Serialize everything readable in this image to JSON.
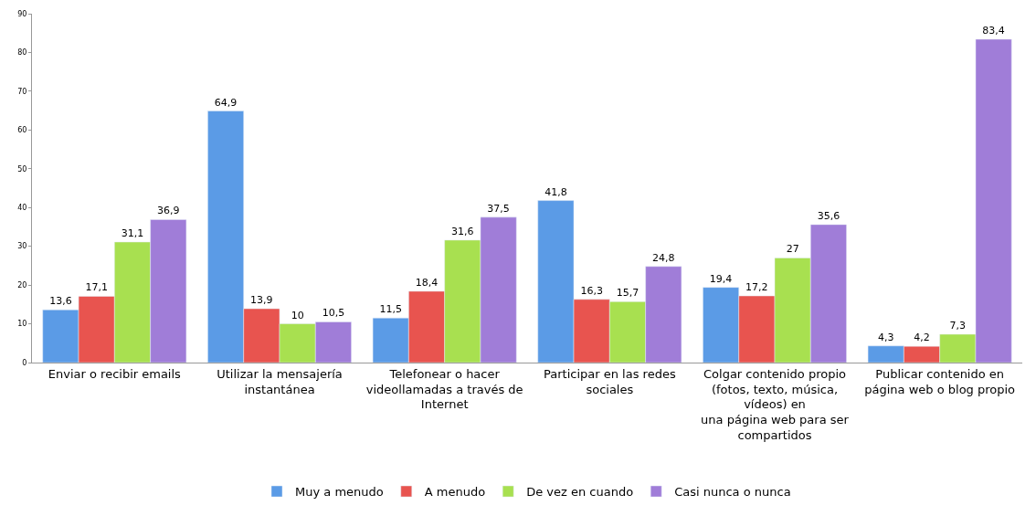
{
  "chart_data": {
    "type": "bar",
    "categories": [
      "Enviar o recibir emails",
      "Utilizar la mensajería\ninstantánea",
      "Telefonear o hacer\nvideollamadas a través de\nInternet",
      "Participar en las redes\nsociales",
      "Colgar contenido propio\n(fotos, texto, música,\nvídeos) en\nuna página web para ser\ncompartidos",
      "Publicar contenido en\npágina web o blog propio"
    ],
    "series": [
      {
        "name": "Muy a menudo",
        "color": "#5b9be6",
        "values": [
          13.6,
          64.9,
          11.5,
          41.8,
          19.4,
          4.3
        ],
        "value_labels": [
          "13,6",
          "64,9",
          "11,5",
          "41,8",
          "19,4",
          "4,3"
        ]
      },
      {
        "name": "A menudo",
        "color": "#e8544f",
        "values": [
          17.1,
          13.9,
          18.4,
          16.3,
          17.2,
          4.2
        ],
        "value_labels": [
          "17,1",
          "13,9",
          "18,4",
          "16,3",
          "17,2",
          "4,2"
        ]
      },
      {
        "name": "De vez en cuando",
        "color": "#a8e050",
        "values": [
          31.1,
          10,
          31.6,
          15.7,
          27,
          7.3
        ],
        "value_labels": [
          "31,1",
          "10",
          "31,6",
          "15,7",
          "27",
          "7,3"
        ]
      },
      {
        "name": "Casi nunca o nunca",
        "color": "#a07dd8",
        "values": [
          36.9,
          10.5,
          37.5,
          24.8,
          35.6,
          83.4
        ],
        "value_labels": [
          "36,9",
          "10,5",
          "37,5",
          "24,8",
          "35,6",
          "83,4"
        ]
      }
    ],
    "ylim": [
      0,
      90
    ],
    "yticks": [
      0,
      10,
      20,
      30,
      40,
      50,
      60,
      70,
      80,
      90
    ],
    "grid": false,
    "legend": "bottom"
  }
}
